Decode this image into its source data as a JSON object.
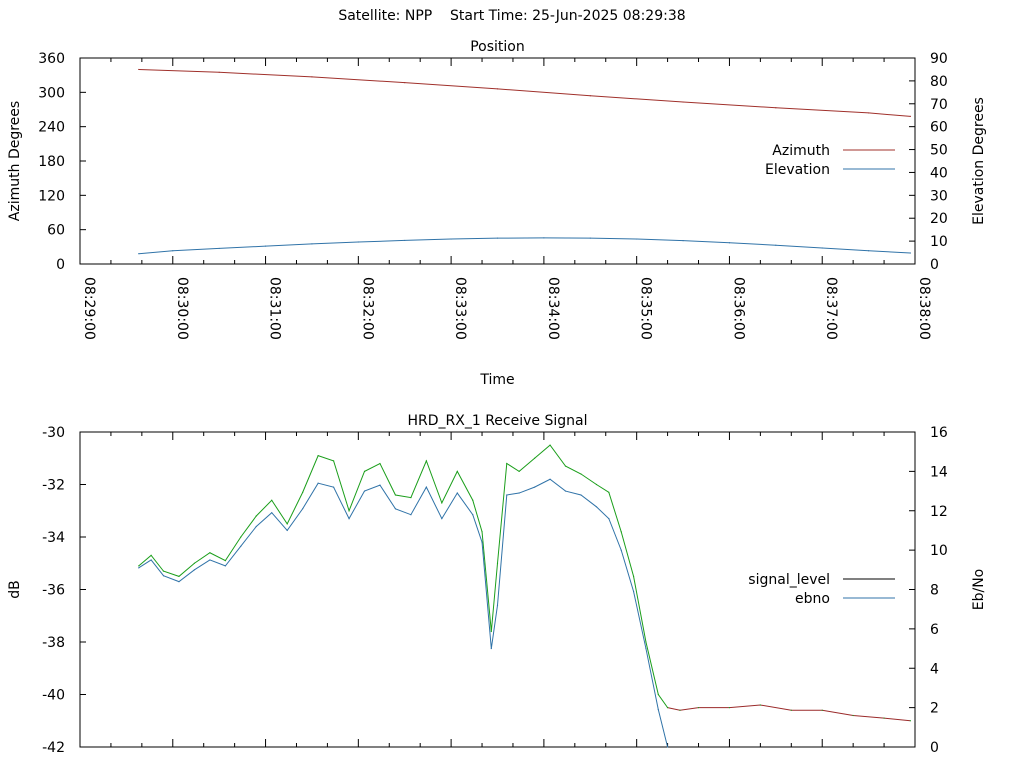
{
  "header": {
    "satellite_label": "Satellite: NPP",
    "start_label": "Start Time: 25-Jun-2025 08:29:38"
  },
  "chart_data": [
    {
      "type": "line",
      "title": "Position",
      "xlabel": "Time",
      "ylabel": "Azimuth Degrees",
      "y2label": "Elevation Degrees",
      "xlim": [
        "08:29:00",
        "08:38:00"
      ],
      "ylim": [
        0,
        360
      ],
      "y2lim": [
        0,
        90
      ],
      "xticks": [
        "08:29:00",
        "08:30:00",
        "08:31:00",
        "08:32:00",
        "08:33:00",
        "08:34:00",
        "08:35:00",
        "08:36:00",
        "08:37:00",
        "08:38:00"
      ],
      "yticks": [
        0,
        60,
        120,
        180,
        240,
        300,
        360
      ],
      "y2ticks": [
        0,
        10,
        20,
        30,
        40,
        50,
        60,
        70,
        80,
        90
      ],
      "legend": "right",
      "grid": false,
      "series": [
        {
          "name": "Azimuth",
          "axis": "y",
          "color": "#a0302b",
          "x": [
            "08:29:38",
            "08:30:30",
            "08:31:30",
            "08:32:30",
            "08:33:30",
            "08:34:30",
            "08:35:30",
            "08:36:30",
            "08:37:30",
            "08:37:57"
          ],
          "values": [
            340,
            335,
            327,
            317,
            306,
            294,
            283,
            273,
            264,
            258
          ]
        },
        {
          "name": "Elevation",
          "axis": "y2",
          "color": "#3073a8",
          "x": [
            "08:29:38",
            "08:30:00",
            "08:30:30",
            "08:31:00",
            "08:31:30",
            "08:32:00",
            "08:32:30",
            "08:33:00",
            "08:33:30",
            "08:34:00",
            "08:34:30",
            "08:35:00",
            "08:35:30",
            "08:36:00",
            "08:36:30",
            "08:37:00",
            "08:37:30",
            "08:37:57"
          ],
          "values": [
            4.5,
            5.8,
            6.8,
            7.8,
            8.8,
            9.6,
            10.3,
            10.9,
            11.3,
            11.4,
            11.3,
            10.9,
            10.2,
            9.3,
            8.2,
            7.0,
            5.8,
            4.8
          ]
        }
      ]
    },
    {
      "type": "line",
      "title": "HRD_RX_1 Receive Signal",
      "ylabel": "dB",
      "y2label": "Eb/No",
      "xlim": [
        "08:29:00",
        "08:38:00"
      ],
      "ylim": [
        -42,
        -30
      ],
      "y2lim": [
        0,
        16
      ],
      "yticks": [
        -42,
        -40,
        -38,
        -36,
        -34,
        -32,
        -30
      ],
      "y2ticks": [
        0,
        2,
        4,
        6,
        8,
        10,
        12,
        14,
        16
      ],
      "legend": "right",
      "grid": false,
      "series": [
        {
          "name": "signal_level",
          "axis": "y",
          "color": "#1a9e1a",
          "tail_color": "#9a2a2a",
          "tail_from": "08:35:20",
          "x": [
            "08:29:38",
            "08:29:46",
            "08:29:54",
            "08:30:04",
            "08:30:14",
            "08:30:24",
            "08:30:34",
            "08:30:44",
            "08:30:54",
            "08:31:04",
            "08:31:14",
            "08:31:24",
            "08:31:34",
            "08:31:44",
            "08:31:54",
            "08:32:04",
            "08:32:14",
            "08:32:24",
            "08:32:34",
            "08:32:44",
            "08:32:54",
            "08:33:04",
            "08:33:14",
            "08:33:20",
            "08:33:26",
            "08:33:30",
            "08:33:36",
            "08:33:44",
            "08:33:54",
            "08:34:04",
            "08:34:14",
            "08:34:24",
            "08:34:34",
            "08:34:42",
            "08:34:50",
            "08:34:58",
            "08:35:06",
            "08:35:14",
            "08:35:20",
            "08:35:28",
            "08:35:40",
            "08:36:00",
            "08:36:20",
            "08:36:40",
            "08:37:00",
            "08:37:20",
            "08:37:40",
            "08:37:57"
          ],
          "values": [
            -35.1,
            -34.7,
            -35.3,
            -35.5,
            -35.0,
            -34.6,
            -34.9,
            -34.0,
            -33.2,
            -32.6,
            -33.5,
            -32.3,
            -30.9,
            -31.1,
            -33.0,
            -31.5,
            -31.2,
            -32.4,
            -32.5,
            -31.1,
            -32.7,
            -31.5,
            -32.6,
            -33.8,
            -37.6,
            -35.0,
            -31.2,
            -31.5,
            -31.0,
            -30.5,
            -31.3,
            -31.6,
            -32.0,
            -32.3,
            -33.8,
            -35.5,
            -38.0,
            -40.0,
            -40.5,
            -40.6,
            -40.5,
            -40.5,
            -40.4,
            -40.6,
            -40.6,
            -40.8,
            -40.9,
            -41.0
          ]
        },
        {
          "name": "ebno",
          "axis": "y2",
          "color": "#3073a8",
          "x": [
            "08:29:38",
            "08:29:46",
            "08:29:54",
            "08:30:04",
            "08:30:14",
            "08:30:24",
            "08:30:34",
            "08:30:44",
            "08:30:54",
            "08:31:04",
            "08:31:14",
            "08:31:24",
            "08:31:34",
            "08:31:44",
            "08:31:54",
            "08:32:04",
            "08:32:14",
            "08:32:24",
            "08:32:34",
            "08:32:44",
            "08:32:54",
            "08:33:04",
            "08:33:14",
            "08:33:20",
            "08:33:26",
            "08:33:30",
            "08:33:36",
            "08:33:44",
            "08:33:54",
            "08:34:04",
            "08:34:14",
            "08:34:24",
            "08:34:34",
            "08:34:42",
            "08:34:50",
            "08:34:58",
            "08:35:06",
            "08:35:14",
            "08:35:20"
          ],
          "values": [
            9.1,
            9.5,
            8.7,
            8.4,
            9.0,
            9.5,
            9.2,
            10.2,
            11.2,
            11.9,
            11.0,
            12.1,
            13.4,
            13.2,
            11.6,
            13.0,
            13.3,
            12.1,
            11.8,
            13.2,
            11.6,
            12.9,
            11.8,
            10.4,
            5.0,
            7.2,
            12.8,
            12.9,
            13.2,
            13.6,
            13.0,
            12.8,
            12.2,
            11.6,
            10.0,
            7.9,
            5.0,
            1.9,
            0.0
          ]
        }
      ]
    }
  ]
}
